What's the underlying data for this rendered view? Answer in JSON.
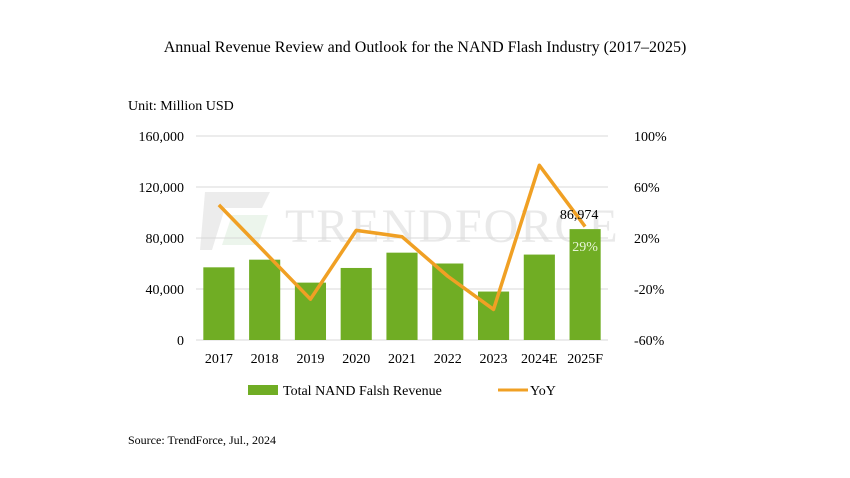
{
  "chart_data": {
    "type": "bar+line",
    "title": "Annual Revenue Review and Outlook for the NAND Flash Industry (2017–2025)",
    "unit_label": "Unit: Million USD",
    "categories": [
      "2017",
      "2018",
      "2019",
      "2020",
      "2021",
      "2022",
      "2023",
      "2024E",
      "2025F"
    ],
    "series": [
      {
        "name": "Total NAND Falsh Revenue",
        "type": "bar",
        "axis": "left",
        "color": "#70ad24",
        "values": [
          57000,
          63000,
          45000,
          56500,
          68500,
          60000,
          38000,
          67000,
          86974
        ]
      },
      {
        "name": "YoY",
        "type": "line",
        "axis": "right",
        "color": "#f0a024",
        "values": [
          46,
          9,
          -28,
          26,
          21,
          -10,
          -36,
          77,
          29
        ]
      }
    ],
    "left_axis": {
      "range": [
        0,
        160000
      ],
      "ticks": [
        "0",
        "40,000",
        "80,000",
        "120,000",
        "160,000"
      ]
    },
    "right_axis": {
      "range": [
        -60,
        100
      ],
      "ticks": [
        "-60%",
        "-20%",
        "20%",
        "60%",
        "100%"
      ]
    },
    "data_labels": {
      "bar_2025F": "86,974",
      "yoy_2025F": "29%"
    },
    "grid": true,
    "legend_placement": "bottom",
    "watermark": "TRENDFORCE",
    "source": "Source: TrendForce, Jul., 2024"
  }
}
